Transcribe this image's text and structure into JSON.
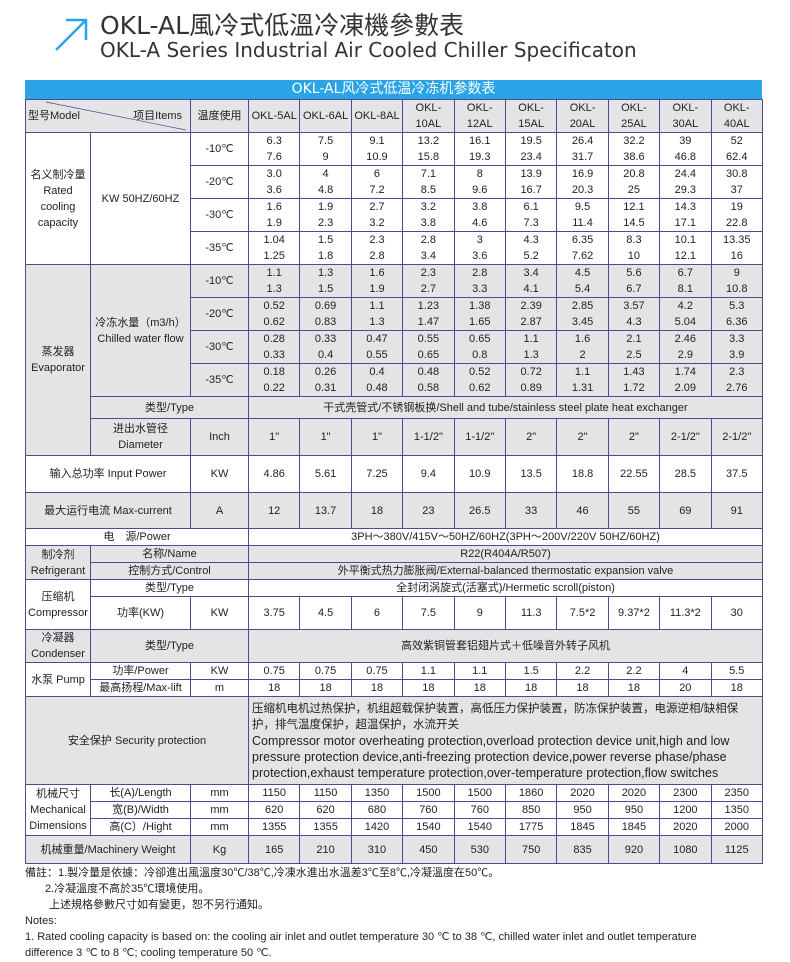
{
  "title": {
    "cn": "OKL-AL風冷式低溫冷凍機參數表",
    "en": "OKL-A Series Industrial Air Cooled Chiller Specificaton",
    "icon": "arrow-up-right-icon",
    "accent": "#2aa4e6"
  },
  "banner": "OKL-AL风冷式低温冷冻机参数表",
  "header": {
    "model": "型号Model",
    "items": "项目Items",
    "temp": "温度使用",
    "models": [
      "OKL-5AL",
      "OKL-6AL",
      "OKL-8AL",
      "OKL-10AL",
      "OKL-12AL",
      "OKL-15AL",
      "OKL-20AL",
      "OKL-25AL",
      "OKL-30AL",
      "OKL-40AL"
    ]
  },
  "cooling": {
    "label": "名义制冷量 Rated cooling capacity",
    "unit": "KW 50HZ/60HZ",
    "rows": [
      {
        "temp": "-10℃",
        "values": [
          "6.3 7.6",
          "7.5 9",
          "9.1 10.9",
          "13.2 15.8",
          "16.1 19.3",
          "19.5 23.4",
          "26.4 31.7",
          "32.2 38.6",
          "39 46.8",
          "52 62.4"
        ]
      },
      {
        "temp": "-20℃",
        "values": [
          "3.0 3.6",
          "4 4.8",
          "6 7.2",
          "7.1 8.5",
          "8 9.6",
          "13.9 16.7",
          "16.9 20.3",
          "20.8 25",
          "24.4 29.3",
          "30.8 37"
        ]
      },
      {
        "temp": "-30℃",
        "values": [
          "1.6 1.9",
          "1.9 2.3",
          "2.7 3.2",
          "3.2 3.8",
          "3.8 4.6",
          "6.1 7.3",
          "9.5 11.4",
          "12.1 14.5",
          "14.3 17.1",
          "19 22.8"
        ]
      },
      {
        "temp": "-35℃",
        "values": [
          "1.04 1.25",
          "1.5 1.8",
          "2.3 2.8",
          "2.8 3.4",
          "3 3.6",
          "4.3 5.2",
          "6.35 7.62",
          "8.3 10",
          "10.1 12.1",
          "13.35 16"
        ]
      }
    ]
  },
  "evaporator": {
    "label": "蒸发器 Evaporator",
    "flow_label": "冷冻水量（m3/h） Chilled water flow",
    "rows": [
      {
        "temp": "-10℃",
        "values": [
          "1.1 1.3",
          "1.3 1.5",
          "1.6 1.9",
          "2.3 2.7",
          "2.8 3.3",
          "3.4 4.1",
          "4.5 5.4",
          "5.6 6.7",
          "6.7 8.1",
          "9 10.8"
        ]
      },
      {
        "temp": "-20℃",
        "values": [
          "0.52 0.62",
          "0.69 0.83",
          "1.1 1.3",
          "1.23 1.47",
          "1.38 1.65",
          "2.39 2.87",
          "2.85 3.45",
          "3.57 4.3",
          "4.2 5.04",
          "5.3 6.36"
        ]
      },
      {
        "temp": "-30℃",
        "values": [
          "0.28 0.33",
          "0.33 0.4",
          "0.47 0.55",
          "0.55 0.65",
          "0.65 0.8",
          "1.1 1.3",
          "1.6 2",
          "2.1 2.5",
          "2.46 2.9",
          "3.3 3.9"
        ]
      },
      {
        "temp": "-35℃",
        "values": [
          "0.18 0.22",
          "0.26 0.31",
          "0.4 0.48",
          "0.48 0.58",
          "0.52 0.62",
          "0.72 0.89",
          "1.1 1.31",
          "1.43 1.72",
          "1.74 2.09",
          "2.3 2.76"
        ]
      }
    ],
    "type_label": "类型/Type",
    "type_value": "干式壳管式/不锈钢板换/Shell and tube/stainless steel plate heat exchanger",
    "diameter_label": "进出水管径 Diameter",
    "diameter_unit": "Inch",
    "diameter": [
      "1\"",
      "1\"",
      "1\"",
      "1-1/2\"",
      "1-1/2\"",
      "2\"",
      "2\"",
      "2\"",
      "2-1/2\"",
      "2-1/2\""
    ]
  },
  "input_power": {
    "label": "输入总功率 Input Power",
    "unit": "KW",
    "values": [
      "4.86",
      "5.61",
      "7.25",
      "9.4",
      "10.9",
      "13.5",
      "18.8",
      "22.55",
      "28.5",
      "37.5"
    ]
  },
  "max_current": {
    "label": "最大运行电流 Max-current",
    "unit": "A",
    "values": [
      "12",
      "13.7",
      "18",
      "23",
      "26.5",
      "33",
      "46",
      "55",
      "69",
      "91"
    ]
  },
  "power_supply": {
    "label": "电　源/Power",
    "value": "3PH～380V/415V～50HZ/60HZ(3PH～200V/220V  50HZ/60HZ)"
  },
  "refrigerant": {
    "label": "制冷剂 Refrigerant",
    "name_label": "名称/Name",
    "name_value": "R22(R404A/R507)",
    "control_label": "控制方式/Control",
    "control_value": "外平衡式热力膨胀阀/External-balanced thermostatic expansion valve"
  },
  "compressor": {
    "label": "压缩机 Compressor",
    "type_label": "类型/Type",
    "type_value": "全封闭涡旋式(活塞式)/Hermetic scroll(piston)",
    "power_label": "功率(KW)",
    "unit": "KW",
    "values": [
      "3.75",
      "4.5",
      "6",
      "7.5",
      "9",
      "11.3",
      "7.5*2",
      "9.37*2",
      "11.3*2",
      "30"
    ]
  },
  "condenser": {
    "label": "冷凝器 Condenser",
    "type_label": "类型/Type",
    "type_value": "高效紫铜管套铝翅片式＋低噪音外转子风机"
  },
  "pump": {
    "label": "水泵 Pump",
    "power_label": "功率/Power",
    "power_unit": "KW",
    "power": [
      "0.75",
      "0.75",
      "0.75",
      "1.1",
      "1.1",
      "1.5",
      "2.2",
      "2.2",
      "4",
      "5.5"
    ],
    "lift_label": "最高扬程/Max-lift",
    "lift_unit": "m",
    "lift": [
      "18",
      "18",
      "18",
      "18",
      "18",
      "18",
      "18",
      "18",
      "20",
      "18"
    ]
  },
  "security": {
    "label": "安全保护 Security protection",
    "value_cn": "压缩机电机过热保护，机组超载保护装置，高低压力保护装置，防冻保护装置，电源逆相/缺相保护，排气温度保护，超温保护，水流开关",
    "value_en": "Compressor motor overheating protection,overload protection device unit,high and low pressure protection device,anti-freezing protection device,power reverse phase/phase protection,exhaust temperature protection,over-temperature protection,flow switches"
  },
  "dimensions": {
    "label": "机械尺寸 Mechanical Dimensions",
    "unit": "mm",
    "rows": [
      {
        "label": "长(A)/Length",
        "values": [
          "1150",
          "1150",
          "1350",
          "1500",
          "1500",
          "1860",
          "2020",
          "2020",
          "2300",
          "2350"
        ]
      },
      {
        "label": "宽(B)/Width",
        "values": [
          "620",
          "620",
          "680",
          "760",
          "760",
          "850",
          "950",
          "950",
          "1200",
          "1350"
        ]
      },
      {
        "label": "高(C）/Hight",
        "values": [
          "1355",
          "1355",
          "1420",
          "1540",
          "1540",
          "1775",
          "1845",
          "1845",
          "2020",
          "2000"
        ]
      }
    ]
  },
  "weight": {
    "label": "机械重量/Machinery Weight",
    "unit": "Kg",
    "values": [
      "165",
      "210",
      "310",
      "450",
      "530",
      "750",
      "835",
      "920",
      "1080",
      "1125"
    ]
  },
  "notes": [
    "備註：1.製冷量是依據：冷卻進出風溫度30℃/38℃,冷凍水進出水溫差3℃至8℃,冷凝溫度在50℃。",
    "2.冷凝溫度不高於35℃環境使用。",
    "上述規格參數尺寸如有變更，恕不另行通知。",
    "Notes:",
    "1. Rated cooling capacity is based on: the cooling air inlet and outlet temperature 30 ℃ to 38 ℃, chilled water inlet and outlet temperature",
    "difference 3 ℃ to 8 ℃; cooling temperature 50 ℃."
  ]
}
